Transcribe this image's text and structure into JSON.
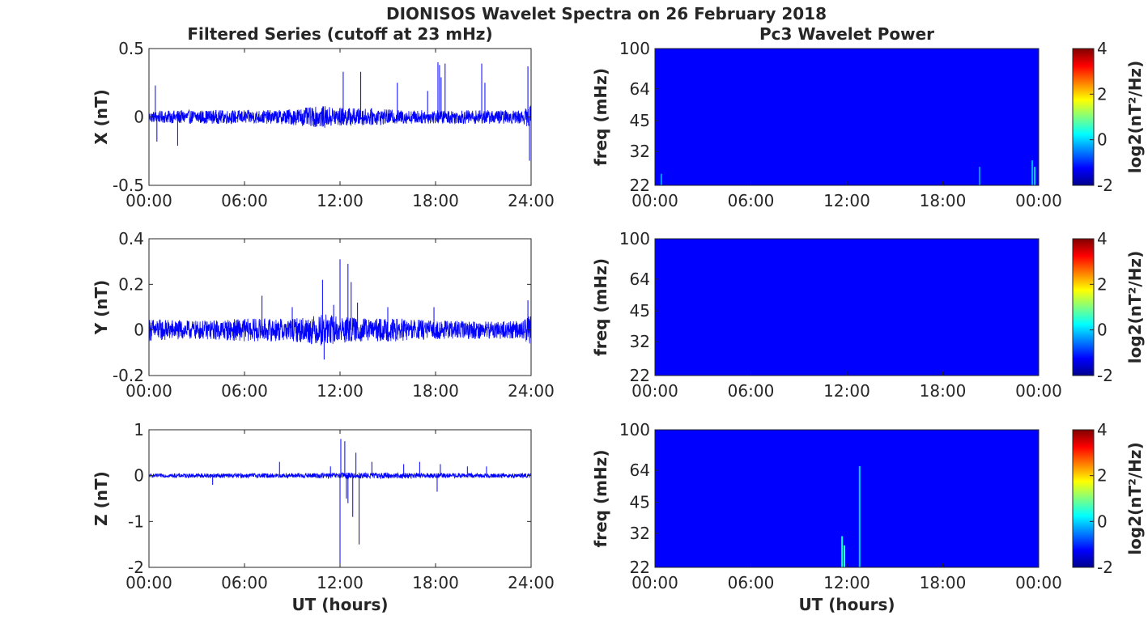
{
  "figure": {
    "title": "DIONISOS Wavelet Spectra on 26 February 2018",
    "left_title": "Filtered Series (cutoff at 23 mHz)",
    "right_title": "Pc3 Wavelet Power",
    "xlabel": "UT (hours)"
  },
  "chart_data": [
    {
      "type": "line",
      "component": "X",
      "ylabel": "X (nT)",
      "x_ticks": [
        "00:00",
        "06:00",
        "12:00",
        "18:00",
        "24:00"
      ],
      "y_ticks": [
        "-0.5",
        "0",
        "0.5"
      ],
      "ylim": [
        -0.5,
        0.5
      ],
      "xlim_hours": [
        0,
        24
      ],
      "color": "#0000ff",
      "noise_envelope": [
        [
          0,
          0.04
        ],
        [
          2,
          0.05
        ],
        [
          4,
          0.05
        ],
        [
          6,
          0.05
        ],
        [
          8,
          0.05
        ],
        [
          10,
          0.07
        ],
        [
          11,
          0.08
        ],
        [
          12,
          0.07
        ],
        [
          14,
          0.06
        ],
        [
          16,
          0.05
        ],
        [
          18,
          0.05
        ],
        [
          20,
          0.05
        ],
        [
          22,
          0.05
        ],
        [
          23.5,
          0.05
        ],
        [
          24,
          0.09
        ]
      ],
      "spikes": [
        [
          0.4,
          0.23
        ],
        [
          0.5,
          -0.18
        ],
        [
          1.8,
          -0.21
        ],
        [
          12.2,
          0.33
        ],
        [
          13.3,
          0.33
        ],
        [
          15.6,
          0.25
        ],
        [
          17.5,
          0.19
        ],
        [
          18.15,
          0.4
        ],
        [
          18.25,
          0.38
        ],
        [
          18.35,
          0.29
        ],
        [
          18.6,
          0.39
        ],
        [
          20.9,
          0.39
        ],
        [
          21.1,
          0.25
        ],
        [
          23.8,
          0.37
        ],
        [
          23.9,
          -0.32
        ],
        [
          24.0,
          0.33
        ]
      ]
    },
    {
      "type": "line",
      "component": "Y",
      "ylabel": "Y (nT)",
      "x_ticks": [
        "00:00",
        "06:00",
        "12:00",
        "18:00",
        "24:00"
      ],
      "y_ticks": [
        "-0.2",
        "0",
        "0.2",
        "0.4"
      ],
      "ylim": [
        -0.2,
        0.4
      ],
      "xlim_hours": [
        0,
        24
      ],
      "color": "#0000ff",
      "noise_envelope": [
        [
          0,
          0.05
        ],
        [
          3,
          0.04
        ],
        [
          6,
          0.05
        ],
        [
          9,
          0.05
        ],
        [
          11,
          0.07
        ],
        [
          12,
          0.06
        ],
        [
          14,
          0.05
        ],
        [
          16,
          0.05
        ],
        [
          18,
          0.04
        ],
        [
          20,
          0.04
        ],
        [
          22,
          0.04
        ],
        [
          23.5,
          0.04
        ],
        [
          24,
          0.07
        ]
      ],
      "spikes": [
        [
          7.1,
          0.15
        ],
        [
          9.0,
          0.1
        ],
        [
          10.9,
          0.22
        ],
        [
          11.6,
          0.11
        ],
        [
          12.0,
          0.31
        ],
        [
          12.5,
          0.29
        ],
        [
          12.7,
          0.21
        ],
        [
          13.1,
          0.12
        ],
        [
          15.0,
          0.1
        ],
        [
          17.9,
          0.1
        ],
        [
          23.8,
          0.13
        ],
        [
          11.0,
          -0.13
        ]
      ]
    },
    {
      "type": "line",
      "component": "Z",
      "ylabel": "Z (nT)",
      "x_ticks": [
        "00:00",
        "06:00",
        "12:00",
        "18:00",
        "24:00"
      ],
      "y_ticks": [
        "-2",
        "-1",
        "0",
        "1"
      ],
      "ylim": [
        -2,
        1
      ],
      "xlim_hours": [
        0,
        24
      ],
      "color": "#0000ff",
      "noise_envelope": [
        [
          0,
          0.04
        ],
        [
          4,
          0.05
        ],
        [
          8,
          0.05
        ],
        [
          11,
          0.06
        ],
        [
          13,
          0.07
        ],
        [
          16,
          0.06
        ],
        [
          20,
          0.05
        ],
        [
          24,
          0.05
        ]
      ],
      "spikes": [
        [
          4.0,
          -0.2
        ],
        [
          8.2,
          0.3
        ],
        [
          11.4,
          0.2
        ],
        [
          12.0,
          -1.95
        ],
        [
          12.05,
          0.8
        ],
        [
          12.3,
          0.75
        ],
        [
          12.4,
          -0.5
        ],
        [
          12.5,
          -0.6
        ],
        [
          12.8,
          -0.9
        ],
        [
          13.0,
          0.5
        ],
        [
          13.2,
          -1.5
        ],
        [
          14.0,
          0.3
        ],
        [
          16.0,
          0.25
        ],
        [
          17.0,
          0.3
        ],
        [
          18.1,
          -0.35
        ],
        [
          18.3,
          0.25
        ],
        [
          20.0,
          0.2
        ],
        [
          21.2,
          0.2
        ]
      ]
    },
    {
      "type": "heatmap",
      "component": "X",
      "ylabel": "freq (mHz)",
      "x_ticks": [
        "00:00",
        "06:00",
        "12:00",
        "18:00",
        "00:00"
      ],
      "y_ticks": [
        "22",
        "32",
        "45",
        "64",
        "100"
      ],
      "ylim_mHz": [
        22,
        100
      ],
      "y_scale": "log",
      "background_log2": -2,
      "features": [
        [
          0.4,
          25,
          -1
        ],
        [
          20.3,
          27,
          -1
        ],
        [
          23.6,
          29,
          -0.8
        ],
        [
          23.75,
          27,
          -0.6
        ]
      ],
      "colorbar": {
        "label": "log2(nT²/Hz)",
        "ticks": [
          "-2",
          "0",
          "2",
          "4"
        ],
        "range": [
          -2,
          4
        ]
      }
    },
    {
      "type": "heatmap",
      "component": "Y",
      "ylabel": "freq (mHz)",
      "x_ticks": [
        "00:00",
        "06:00",
        "12:00",
        "18:00",
        "00:00"
      ],
      "y_ticks": [
        "22",
        "32",
        "45",
        "64",
        "100"
      ],
      "ylim_mHz": [
        22,
        100
      ],
      "y_scale": "log",
      "background_log2": -2,
      "features": [],
      "colorbar": {
        "label": "log2(nT²/Hz)",
        "ticks": [
          "-2",
          "0",
          "2",
          "4"
        ],
        "range": [
          -2,
          4
        ]
      }
    },
    {
      "type": "heatmap",
      "component": "Z",
      "ylabel": "freq (mHz)",
      "x_ticks": [
        "00:00",
        "06:00",
        "12:00",
        "18:00",
        "00:00"
      ],
      "y_ticks": [
        "22",
        "32",
        "45",
        "64",
        "100"
      ],
      "ylim_mHz": [
        22,
        100
      ],
      "y_scale": "log",
      "background_log2": -2,
      "features": [
        [
          11.7,
          31,
          -0.3
        ],
        [
          11.85,
          28,
          0
        ],
        [
          12.8,
          67,
          -0.6
        ]
      ],
      "colorbar": {
        "label": "log2(nT²/Hz)",
        "ticks": [
          "-2",
          "0",
          "2",
          "4"
        ],
        "range": [
          -2,
          4
        ]
      }
    }
  ]
}
